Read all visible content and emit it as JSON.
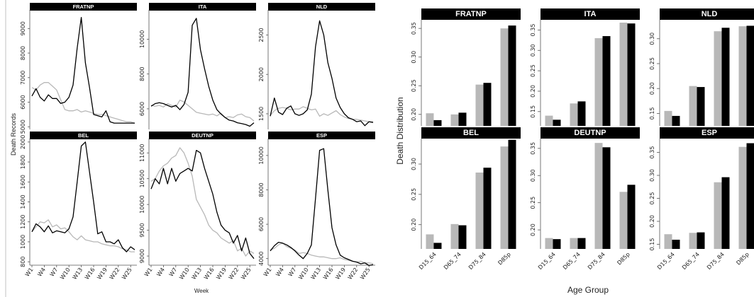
{
  "colors": {
    "series_2020": "#000000",
    "series_baseline": "#b8b8b8",
    "strip": "#000000",
    "strip_text": "#ffffff"
  },
  "chart_data": [
    {
      "type": "line",
      "ylabel": "Death Records",
      "xlabel": "Week",
      "x_ticks": [
        "W1",
        "W4",
        "W7",
        "W10",
        "W13",
        "W16",
        "W19",
        "W22",
        "W25"
      ],
      "x": [
        1,
        2,
        3,
        4,
        5,
        6,
        7,
        8,
        9,
        10,
        11,
        12,
        13,
        14,
        15,
        16,
        17,
        18,
        19,
        20,
        21,
        22,
        23,
        24,
        25,
        26
      ],
      "panels": [
        {
          "name": "FRATNP",
          "ylim": [
            4950,
            9700
          ],
          "yticks": [
            5000,
            6000,
            7000,
            8000,
            9000
          ],
          "series": [
            {
              "role": "dark",
              "values": [
                6250,
                6550,
                6200,
                6050,
                6300,
                6150,
                6150,
                5950,
                6000,
                6200,
                6700,
                8200,
                9450,
                7600,
                6600,
                5500,
                5450,
                5400,
                5650,
                5200,
                5150,
                5150,
                5150,
                5150,
                5150,
                5150
              ]
            },
            {
              "role": "light",
              "values": [
                6600,
                6500,
                6700,
                6800,
                6800,
                6650,
                6500,
                6100,
                5700,
                5650,
                5650,
                5700,
                5600,
                5650,
                5600,
                5550,
                5500,
                5500,
                5450,
                5400,
                5350,
                5300,
                5250,
                5200,
                5200,
                5150
              ]
            }
          ]
        },
        {
          "name": "ITA",
          "ylim": [
            4900,
            11600
          ],
          "yticks": [
            6000,
            8000,
            10000
          ],
          "series": [
            {
              "role": "dark",
              "values": [
                6150,
                6300,
                6350,
                6300,
                6200,
                6100,
                6200,
                5950,
                6250,
                6950,
                10800,
                11200,
                9400,
                8300,
                7300,
                6500,
                5950,
                5700,
                5500,
                5350,
                5300,
                5200,
                5150,
                5100,
                5000,
                5200
              ]
            },
            {
              "role": "light",
              "values": [
                6200,
                6150,
                6200,
                6100,
                6300,
                6200,
                6100,
                6500,
                6400,
                6200,
                6000,
                5800,
                5750,
                5700,
                5650,
                5700,
                5600,
                5750,
                5500,
                5550,
                5500,
                5650,
                5700,
                5550,
                5500,
                5300
              ]
            }
          ]
        },
        {
          "name": "NLD",
          "ylim": [
            1320,
            2800
          ],
          "yticks": [
            1500,
            2000,
            2500
          ],
          "series": [
            {
              "role": "dark",
              "values": [
                1470,
                1700,
                1520,
                1490,
                1570,
                1600,
                1500,
                1480,
                1500,
                1550,
                1750,
                2350,
                2680,
                2500,
                2150,
                1950,
                1700,
                1580,
                1500,
                1450,
                1430,
                1400,
                1410,
                1350,
                1400,
                1390
              ]
            },
            {
              "role": "light",
              "values": [
                1480,
                1540,
                1570,
                1580,
                1570,
                1550,
                1560,
                1560,
                1590,
                1570,
                1550,
                1560,
                1470,
                1500,
                1480,
                1510,
                1540,
                1490,
                1460,
                1440,
                1430,
                1430,
                1420,
                1410,
                1400,
                1400
              ]
            }
          ]
        },
        {
          "name": "BEL",
          "ylim": [
            780,
            2020
          ],
          "yticks": [
            800,
            1000,
            1200,
            1400,
            1600,
            1800,
            2000
          ],
          "series": [
            {
              "role": "dark",
              "values": [
                1100,
                1180,
                1150,
                1100,
                1160,
                1090,
                1110,
                1100,
                1090,
                1130,
                1250,
                1600,
                1960,
                2000,
                1700,
                1400,
                1080,
                1100,
                1000,
                1000,
                980,
                1020,
                940,
                900,
                950,
                920
              ]
            },
            {
              "role": "light",
              "values": [
                1100,
                1150,
                1200,
                1190,
                1220,
                1150,
                1170,
                1130,
                1140,
                1100,
                1050,
                1020,
                1060,
                1020,
                1010,
                1000,
                1000,
                980,
                970,
                960,
                960,
                950,
                930,
                920,
                900,
                900
              ]
            }
          ]
        },
        {
          "name": "DEUTNP",
          "ylim": [
            8850,
            11250
          ],
          "yticks": [
            9000,
            9500,
            10000,
            10500,
            11000
          ],
          "series": [
            {
              "role": "dark",
              "values": [
                10300,
                10500,
                10400,
                10700,
                10400,
                10700,
                10450,
                10600,
                10650,
                10700,
                10650,
                11050,
                11000,
                10700,
                10450,
                10200,
                9850,
                9600,
                9500,
                9450,
                9250,
                9400,
                9100,
                9350,
                9050,
                8950
              ]
            },
            {
              "role": "light",
              "values": [
                10450,
                10500,
                10650,
                10750,
                10800,
                10900,
                10950,
                11100,
                11000,
                10800,
                10550,
                10100,
                9950,
                9800,
                9600,
                9500,
                9450,
                9350,
                9300,
                9250,
                9300,
                9100,
                9150,
                9000,
                9100,
                9050
              ]
            }
          ]
        },
        {
          "name": "ESP",
          "ylim": [
            3700,
            10900
          ],
          "yticks": [
            4000,
            6000,
            8000,
            10000
          ],
          "series": [
            {
              "role": "dark",
              "values": [
                4450,
                4750,
                4950,
                4900,
                4800,
                4650,
                4450,
                4200,
                4000,
                4300,
                4800,
                7500,
                10300,
                10400,
                8000,
                5800,
                4800,
                4200,
                4050,
                3950,
                3850,
                3800,
                3700,
                3750,
                3600,
                3650
              ]
            },
            {
              "role": "light",
              "values": [
                4500,
                4600,
                4800,
                4900,
                4700,
                4600,
                4500,
                4300,
                4350,
                4300,
                4200,
                4150,
                4100,
                4100,
                4050,
                4000,
                4000,
                4050,
                3950,
                3900,
                3850,
                3800,
                3850,
                3750,
                3750,
                3700
              ]
            }
          ]
        }
      ]
    },
    {
      "type": "bar",
      "ylabel": "Death Distribution",
      "xlabel": "Age Group",
      "categories": [
        "D15_64",
        "D65_74",
        "D75_84",
        "D85p"
      ],
      "panels": [
        {
          "name": "FRATNP",
          "ylim": [
            0.18,
            0.365
          ],
          "yticks": [
            0.2,
            0.25,
            0.3,
            0.35
          ],
          "series": [
            {
              "role": "light",
              "values": [
                0.202,
                0.2,
                0.252,
                0.35
              ]
            },
            {
              "role": "dark",
              "values": [
                0.19,
                0.203,
                0.255,
                0.355
              ]
            }
          ]
        },
        {
          "name": "ITA",
          "ylim": [
            0.115,
            0.375
          ],
          "yticks": [
            0.15,
            0.2,
            0.25,
            0.3,
            0.35
          ],
          "series": [
            {
              "role": "light",
              "values": [
                0.14,
                0.17,
                0.33,
                0.368
              ]
            },
            {
              "role": "dark",
              "values": [
                0.13,
                0.175,
                0.335,
                0.366
              ]
            }
          ]
        },
        {
          "name": "NLD",
          "ylim": [
            0.125,
            0.338
          ],
          "yticks": [
            0.15,
            0.2,
            0.25,
            0.3
          ],
          "series": [
            {
              "role": "light",
              "values": [
                0.155,
                0.205,
                0.315,
                0.325
              ]
            },
            {
              "role": "dark",
              "values": [
                0.145,
                0.203,
                0.322,
                0.326
              ]
            }
          ]
        },
        {
          "name": "BEL",
          "ylim": [
            0.16,
            0.342
          ],
          "yticks": [
            0.2,
            0.25,
            0.3
          ],
          "series": [
            {
              "role": "light",
              "values": [
                0.184,
                0.201,
                0.286,
                0.329
              ]
            },
            {
              "role": "dark",
              "values": [
                0.17,
                0.199,
                0.294,
                0.34
              ]
            }
          ]
        },
        {
          "name": "DEUTNP",
          "ylim": [
            0.165,
            0.368
          ],
          "yticks": [
            0.2,
            0.25,
            0.3,
            0.35
          ],
          "series": [
            {
              "role": "light",
              "values": [
                0.185,
                0.185,
                0.36,
                0.27
              ]
            },
            {
              "role": "dark",
              "values": [
                0.183,
                0.185,
                0.352,
                0.283
              ]
            }
          ]
        },
        {
          "name": "ESP",
          "ylim": [
            0.14,
            0.38
          ],
          "yticks": [
            0.15,
            0.2,
            0.25,
            0.3,
            0.35
          ],
          "series": [
            {
              "role": "light",
              "values": [
                0.172,
                0.175,
                0.285,
                0.362
              ]
            },
            {
              "role": "dark",
              "values": [
                0.16,
                0.176,
                0.296,
                0.37
              ]
            }
          ]
        }
      ]
    }
  ]
}
